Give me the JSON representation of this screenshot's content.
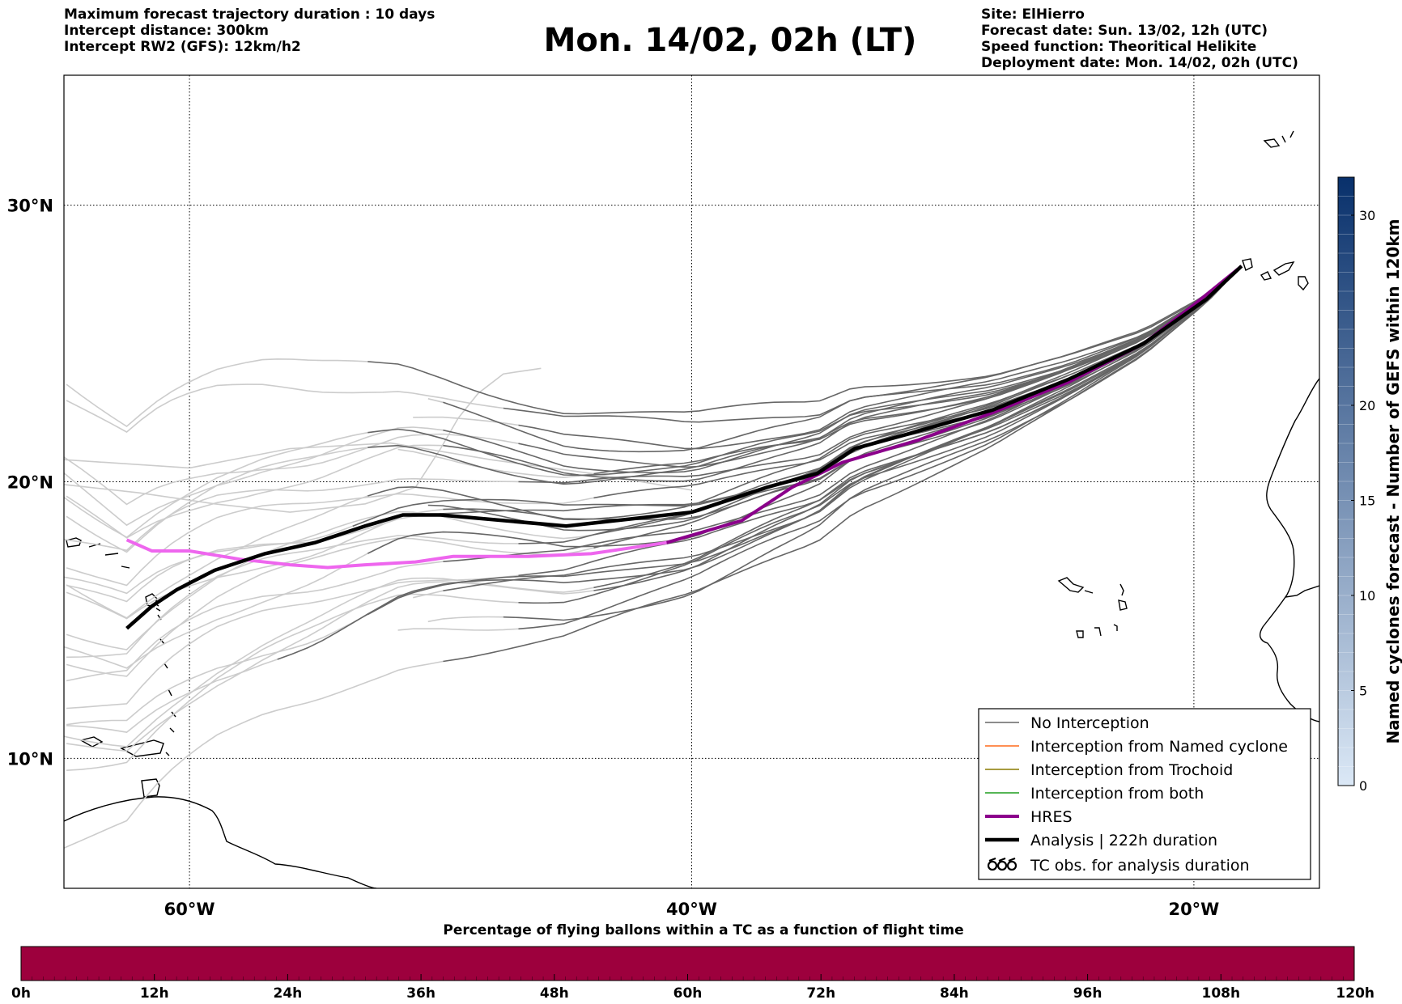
{
  "header": {
    "left_lines": [
      "Maximum forecast trajectory duration : 10 days",
      "Intercept distance: 300km",
      "Intercept RW2 (GFS):  12km/h2"
    ],
    "title": "Mon. 14/02, 02h (LT)",
    "right_lines": [
      "Site: ElHierro",
      "Forecast date: Sun. 13/02, 12h (UTC)",
      "Speed function: Theoritical Helikite",
      "Deployment date: Mon. 14/02, 02h (UTC)"
    ]
  },
  "map": {
    "lon_range": [
      -65,
      -15
    ],
    "lat_range": [
      5.3,
      34.7
    ],
    "lon_ticks": [
      {
        "value": -60,
        "label": "60°W"
      },
      {
        "value": -40,
        "label": "40°W"
      },
      {
        "value": -20,
        "label": "20°W"
      }
    ],
    "lat_ticks": [
      {
        "value": 30,
        "label": "30°N"
      },
      {
        "value": 20,
        "label": "20°N"
      },
      {
        "value": 10,
        "label": "10°N"
      }
    ],
    "colors": {
      "no_interception": "#666666",
      "faded": "#cccccc",
      "named_cyclone": "#ff6a1a",
      "trochoid": "#8a7a00",
      "both": "#1e9e1e",
      "hres": "#8b008b",
      "hres_early": "#ee66ee",
      "analysis": "#000000"
    },
    "analysis_track": [
      [
        -18.1,
        27.8
      ],
      [
        -19.5,
        26.6
      ],
      [
        -22,
        25
      ],
      [
        -25,
        23.7
      ],
      [
        -28,
        22.6
      ],
      [
        -31.5,
        21.7
      ],
      [
        -33.5,
        21.2
      ],
      [
        -35,
        20.3
      ],
      [
        -37,
        19.8
      ],
      [
        -40,
        18.9
      ],
      [
        -43,
        18.6
      ],
      [
        -45,
        18.4
      ],
      [
        -47.5,
        18.6
      ],
      [
        -50,
        18.8
      ],
      [
        -51.5,
        18.8
      ],
      [
        -53,
        18.4
      ],
      [
        -55,
        17.8
      ],
      [
        -57,
        17.4
      ],
      [
        -59,
        16.8
      ],
      [
        -60.5,
        16.1
      ],
      [
        -61.5,
        15.5
      ],
      [
        -62.5,
        14.7
      ]
    ],
    "hres_track": [
      [
        -18.1,
        27.8
      ],
      [
        -20,
        26.4
      ],
      [
        -22,
        25
      ],
      [
        -25,
        23.6
      ],
      [
        -28,
        22.5
      ],
      [
        -31,
        21.5
      ],
      [
        -34,
        20.7
      ],
      [
        -36,
        19.8
      ],
      [
        -38,
        18.6
      ],
      [
        -41,
        17.8
      ],
      [
        -44,
        17.4
      ],
      [
        -46.5,
        17.3
      ],
      [
        -48,
        17.3
      ],
      [
        -49.5,
        17.3
      ],
      [
        -51,
        17.1
      ],
      [
        -53,
        17.0
      ],
      [
        -54.5,
        16.9
      ],
      [
        -56,
        17.0
      ],
      [
        -58,
        17.2
      ],
      [
        -60,
        17.5
      ],
      [
        -61.5,
        17.5
      ],
      [
        -62.5,
        17.9
      ]
    ],
    "hres_split_index": 9
  },
  "legend": {
    "items": [
      {
        "label": "No Interception",
        "style": "no_interception"
      },
      {
        "label": "Interception from Named cyclone",
        "style": "named_cyclone"
      },
      {
        "label": "Interception from Trochoid",
        "style": "trochoid"
      },
      {
        "label": "Interception from both",
        "style": "both"
      },
      {
        "label": "HRES",
        "style": "hres"
      },
      {
        "label": "Analysis | 222h duration",
        "style": "analysis"
      },
      {
        "label": "TC obs. for analysis duration",
        "style": "tc_obs"
      }
    ]
  },
  "cyclone_colorbar": {
    "title": "Named cyclones forecast - Number of GEFS within 120km",
    "ticks": [
      "0",
      "5",
      "10",
      "15",
      "20",
      "30"
    ],
    "color_low": "#dbe8f6",
    "color_high": "#08306b"
  },
  "flight_colorbar": {
    "title": "Percentage of flying ballons within a TC as a function of flight time",
    "ticks": [
      "0h",
      "12h",
      "24h",
      "36h",
      "48h",
      "60h",
      "72h",
      "84h",
      "96h",
      "108h",
      "120h"
    ],
    "fill": "#9d003d"
  }
}
